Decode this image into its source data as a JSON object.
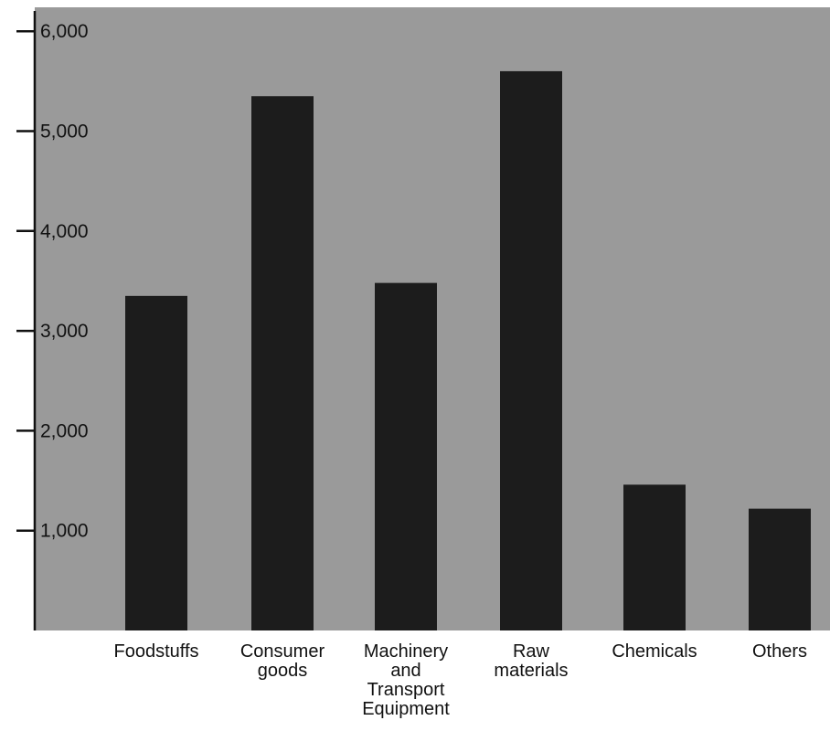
{
  "chart_data": {
    "type": "bar",
    "title": "",
    "xlabel": "",
    "ylabel": "",
    "categories": [
      [
        "Foodstuffs"
      ],
      [
        "Consumer",
        "goods"
      ],
      [
        "Machinery",
        "and",
        "Transport",
        "Equipment"
      ],
      [
        "Raw",
        "materials"
      ],
      [
        "Chemicals"
      ],
      [
        "Others"
      ]
    ],
    "values": [
      3350,
      5350,
      3480,
      5600,
      1460,
      1220
    ],
    "yticks": [
      1000,
      2000,
      3000,
      4000,
      5000,
      6000
    ],
    "ytick_labels": [
      "1,000",
      "2,000",
      "3,000",
      "4,000",
      "5,000",
      "6,000"
    ],
    "ylim": [
      0,
      6200
    ],
    "grid": false,
    "legend": "none"
  },
  "colors": {
    "plot_background": "#9a9a9a",
    "bar": "#1c1c1c",
    "axis": "#111111"
  }
}
